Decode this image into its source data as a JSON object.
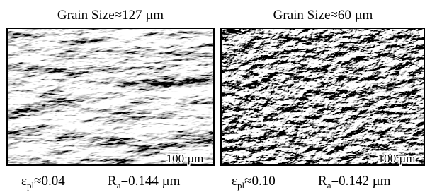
{
  "panels": [
    {
      "title": "Grain Size≈127 µm",
      "scale_bar": "100 µm",
      "strain": {
        "symbol": "ε",
        "subscript": "pl",
        "value": "≈0.04"
      },
      "roughness": {
        "symbol": "R",
        "subscript": "a",
        "value": "=0.144 µm"
      }
    },
    {
      "title": "Grain Size≈60 µm",
      "scale_bar": "100 µm",
      "strain": {
        "symbol": "ε",
        "subscript": "pl",
        "value": "≈0.10"
      },
      "roughness": {
        "symbol": "R",
        "subscript": "a",
        "value": "=0.142 µm"
      }
    }
  ]
}
